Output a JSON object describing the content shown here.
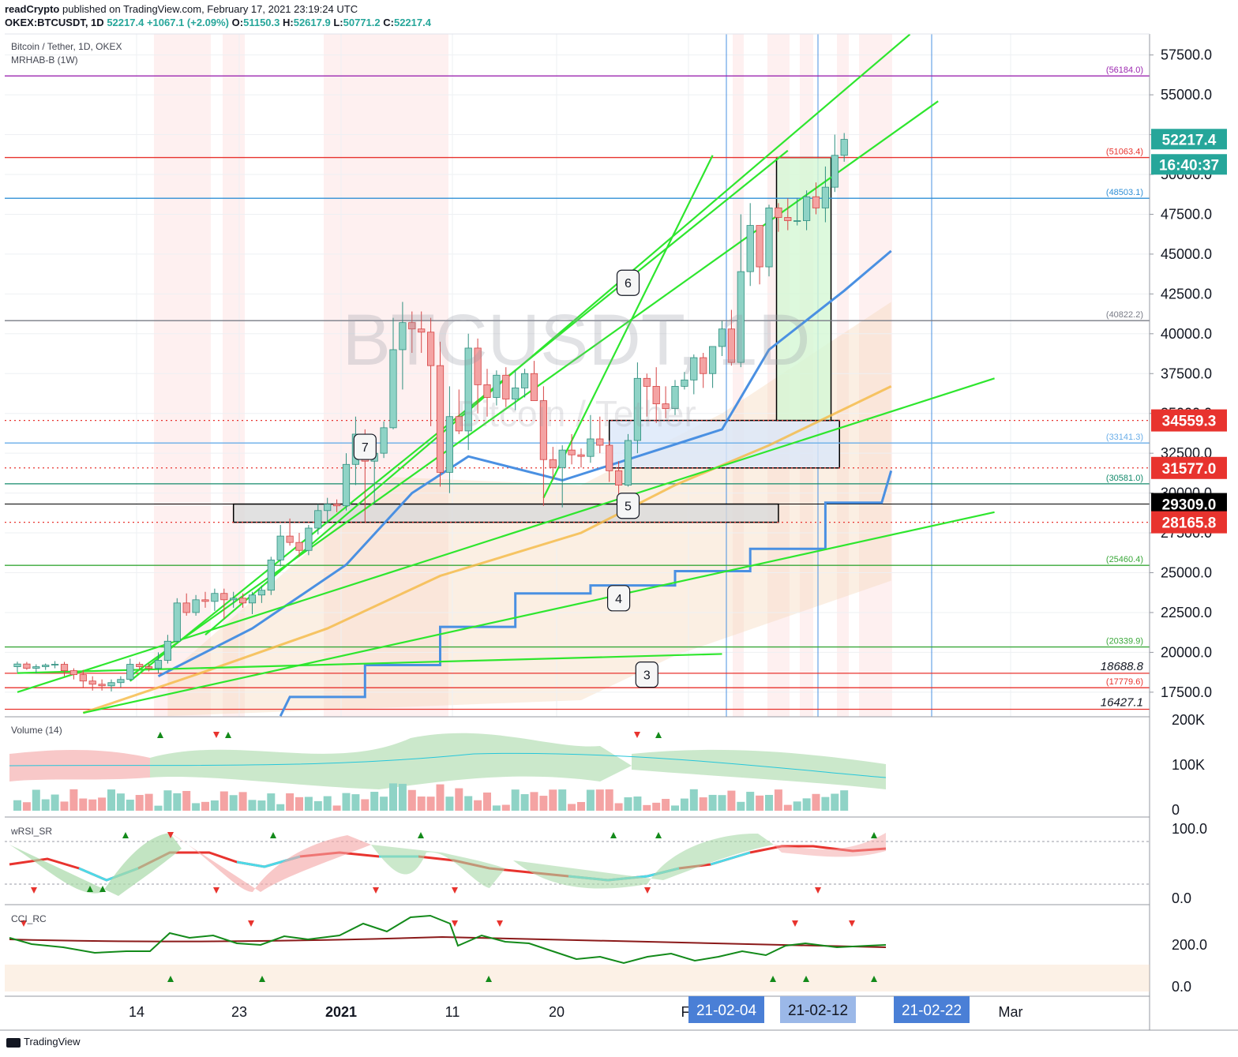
{
  "header": {
    "publisher_brand": "readCrypto",
    "published_text": "published on TradingView.com, February 17, 2021 23:19:24 UTC",
    "symbol_line_prefix": "OKEX:BTCUSDT, 1D",
    "last": "52217.4",
    "change": "+1067.1 (+2.09%)",
    "open_label": "O:",
    "open": "51150.3",
    "high_label": "H:",
    "high": "52617.9",
    "low_label": "L:",
    "low": "50771.2",
    "close_label": "C:",
    "close": "52217.4"
  },
  "legend": {
    "title": "Bitcoin / Tether, 1D, OKEX",
    "indicator": "MRHAB-B (1W)",
    "watermark_symbol": "BTCUSDT, 1D",
    "watermark_name": "Bitcoin / Tether"
  },
  "footer": {
    "brand": "TradingView"
  },
  "colors": {
    "up": "#8fd3c6",
    "up_border": "#2f8f7f",
    "down": "#f4a3a3",
    "down_border": "#d64545",
    "green_line": "#2ee62e",
    "blue_line": "#4a90e2",
    "orange_line": "#f5b942",
    "red_line": "#e8332e",
    "purple_line": "#9c27b0",
    "grid": "#eef0f3"
  },
  "chart_data": {
    "type": "candlestick",
    "symbol": "OKEX:BTCUSDT",
    "interval": "1D",
    "x_tick_labels": [
      "14",
      "23",
      "2021",
      "11",
      "20",
      "F",
      "Mar"
    ],
    "ylim": [
      16000,
      59000
    ],
    "y_tick_labels": [
      "57500.0",
      "55000.0",
      "52500.0",
      "50000.0",
      "47500.0",
      "45000.0",
      "42500.0",
      "40000.0",
      "37500.0",
      "35000.0",
      "32500.0",
      "30000.0",
      "27500.0",
      "25000.0",
      "22500.0",
      "20000.0",
      "17500.0"
    ],
    "current_price": "52217.4",
    "countdown": "16:40:37",
    "price_badges": [
      {
        "text": "34559.3",
        "value": 34559.3,
        "kind": "red"
      },
      {
        "text": "31577.0",
        "value": 31577.0,
        "kind": "red"
      },
      {
        "text": "29309.0",
        "value": 29309.0,
        "kind": "black"
      },
      {
        "text": "28165.8",
        "value": 28165.8,
        "kind": "red"
      }
    ],
    "level_lines": [
      {
        "text": "(56184.0)",
        "value": 56184.0,
        "color": "#9c27b0"
      },
      {
        "text": "(51063.4)",
        "value": 51063.4,
        "color": "#e8332e"
      },
      {
        "text": "(48503.1)",
        "value": 48503.1,
        "color": "#2f8fd6"
      },
      {
        "text": "(40822.2)",
        "value": 40822.2,
        "color": "#787b86"
      },
      {
        "text": "(33141.3)",
        "value": 33141.3,
        "color": "#6aaee8"
      },
      {
        "text": "(30581.0)",
        "value": 30581.0,
        "color": "#138a6b"
      },
      {
        "text": "(25460.4)",
        "value": 25460.4,
        "color": "#3aa83a"
      },
      {
        "text": "(20339.9)",
        "value": 20339.9,
        "color": "#3aa83a"
      },
      {
        "text": "18688.8",
        "value": 18688.8,
        "color": "#e8332e"
      },
      {
        "text": "(17779.6)",
        "value": 17779.6,
        "color": "#e8332e"
      },
      {
        "text": "16427.1",
        "value": 16427.1,
        "color": "#e8332e"
      }
    ],
    "candles": [
      [
        19100,
        19420,
        18750,
        19270
      ],
      [
        19270,
        19400,
        18900,
        19000
      ],
      [
        19000,
        19250,
        18700,
        19100
      ],
      [
        19100,
        19300,
        18900,
        19200
      ],
      [
        19200,
        19450,
        19000,
        19250
      ],
      [
        19250,
        19400,
        18500,
        18850
      ],
      [
        18850,
        19000,
        18300,
        18600
      ],
      [
        18600,
        18900,
        17800,
        18200
      ],
      [
        18200,
        18500,
        17600,
        18000
      ],
      [
        18000,
        18300,
        17600,
        17900
      ],
      [
        17900,
        18300,
        17550,
        18100
      ],
      [
        18100,
        18500,
        17800,
        18300
      ],
      [
        18300,
        19600,
        18200,
        19250
      ],
      [
        19250,
        19400,
        18900,
        19100
      ],
      [
        19100,
        19300,
        18800,
        19000
      ],
      [
        19000,
        20000,
        18700,
        19500
      ],
      [
        19500,
        21100,
        19300,
        20700
      ],
      [
        20700,
        23400,
        20600,
        23100
      ],
      [
        23100,
        23700,
        22300,
        22500
      ],
      [
        22500,
        23600,
        22300,
        23300
      ],
      [
        23300,
        23800,
        22800,
        23200
      ],
      [
        23200,
        24000,
        22600,
        23700
      ],
      [
        23700,
        24000,
        22100,
        23300
      ],
      [
        23300,
        23800,
        22800,
        23400
      ],
      [
        23400,
        23700,
        22800,
        23100
      ],
      [
        23100,
        23800,
        22400,
        23600
      ],
      [
        23600,
        24200,
        23100,
        23900
      ],
      [
        23900,
        26000,
        23600,
        25800
      ],
      [
        25800,
        28000,
        25400,
        27300
      ],
      [
        27300,
        28400,
        26700,
        26900
      ],
      [
        26900,
        27500,
        26000,
        26400
      ],
      [
        26400,
        28000,
        26100,
        27800
      ],
      [
        27800,
        29300,
        27400,
        28900
      ],
      [
        28900,
        29700,
        28100,
        29300
      ],
      [
        29300,
        29600,
        28800,
        29200
      ],
      [
        29200,
        32500,
        28900,
        31800
      ],
      [
        31800,
        34800,
        30500,
        33700
      ],
      [
        33700,
        34000,
        28200,
        32000
      ],
      [
        32000,
        33300,
        29300,
        32500
      ],
      [
        32500,
        34500,
        32200,
        34100
      ],
      [
        34100,
        41000,
        34000,
        39000
      ],
      [
        39000,
        42000,
        36500,
        40700
      ],
      [
        40700,
        41400,
        38800,
        40300
      ],
      [
        40300,
        41400,
        38800,
        40100
      ],
      [
        40100,
        41000,
        34200,
        38000
      ],
      [
        38000,
        39500,
        30400,
        31300
      ],
      [
        31300,
        36700,
        30000,
        34800
      ],
      [
        34800,
        36500,
        33700,
        33900
      ],
      [
        33900,
        40000,
        32700,
        39100
      ],
      [
        39100,
        39700,
        35000,
        36800
      ],
      [
        36800,
        37800,
        34800,
        36000
      ],
      [
        36000,
        37700,
        35500,
        37400
      ],
      [
        37400,
        37900,
        35400,
        35900
      ],
      [
        35900,
        37700,
        35200,
        36600
      ],
      [
        36600,
        37800,
        36000,
        37500
      ],
      [
        37500,
        38300,
        35800,
        35800
      ],
      [
        35800,
        36700,
        29200,
        32100
      ],
      [
        32100,
        32900,
        30800,
        31600
      ],
      [
        31600,
        33000,
        29100,
        32700
      ],
      [
        32700,
        33700,
        31800,
        32400
      ],
      [
        32400,
        32800,
        31600,
        32300
      ],
      [
        32300,
        34900,
        31900,
        33400
      ],
      [
        33400,
        34800,
        32500,
        33000
      ],
      [
        33000,
        33300,
        30700,
        31400
      ],
      [
        31400,
        32000,
        29300,
        30500
      ],
      [
        30500,
        33700,
        30400,
        33300
      ],
      [
        33300,
        38200,
        32500,
        37200
      ],
      [
        37200,
        37500,
        34800,
        36700
      ],
      [
        36700,
        37900,
        34400,
        35600
      ],
      [
        35600,
        36700,
        34700,
        35300
      ],
      [
        35300,
        37100,
        34900,
        36700
      ],
      [
        36700,
        37600,
        36500,
        37100
      ],
      [
        37100,
        38700,
        36200,
        38500
      ],
      [
        38500,
        38800,
        36600,
        37500
      ],
      [
        37500,
        39200,
        36600,
        39200
      ],
      [
        39200,
        40800,
        38600,
        40300
      ],
      [
        40300,
        41500,
        38000,
        38200
      ],
      [
        38200,
        47500,
        37900,
        43900
      ],
      [
        43900,
        48200,
        43000,
        46800
      ],
      [
        46800,
        46800,
        43100,
        44200
      ],
      [
        44200,
        48100,
        43600,
        47900
      ],
      [
        47900,
        48200,
        46400,
        47300
      ],
      [
        47300,
        48500,
        46500,
        47100
      ],
      [
        47100,
        48500,
        46800,
        47100
      ],
      [
        47100,
        49000,
        46500,
        48600
      ],
      [
        48600,
        49500,
        47500,
        47900
      ],
      [
        47900,
        50500,
        47000,
        49200
      ],
      [
        49200,
        52500,
        48900,
        51200
      ],
      [
        51200,
        52600,
        50800,
        52200
      ]
    ],
    "trend_lines": [
      {
        "from": [
          0,
          18700
        ],
        "to": [
          75,
          19900
        ]
      },
      {
        "from": [
          0,
          17500
        ],
        "to": [
          104,
          37200
        ]
      },
      {
        "from": [
          7,
          16200
        ],
        "to": [
          104,
          28800
        ]
      },
      {
        "from": [
          12,
          18200
        ],
        "to": [
          82,
          51500
        ]
      },
      {
        "from": [
          12,
          18500
        ],
        "to": [
          98,
          54600
        ]
      },
      {
        "from": [
          20,
          21100
        ],
        "to": [
          95,
          58800
        ]
      },
      {
        "from": [
          56,
          29700
        ],
        "to": [
          74,
          51200
        ]
      }
    ],
    "zones": [
      {
        "name": "grey-box",
        "x_from": 23,
        "x_to": 81,
        "y_from": 28165.8,
        "y_to": 29309.0
      },
      {
        "name": "blue-box",
        "x_from": 63,
        "x_to": 87.5,
        "y_from": 31577.0,
        "y_to": 34559.3
      },
      {
        "name": "target-box",
        "x_from": 80.8,
        "x_to": 86.6,
        "y_from": 34559.3,
        "y_to": 51063.4
      }
    ],
    "wave_labels": [
      {
        "text": "7",
        "x": 37,
        "y": 32900
      },
      {
        "text": "6",
        "x": 65,
        "y": 43200
      },
      {
        "text": "5",
        "x": 65,
        "y": 29200
      },
      {
        "text": "4",
        "x": 64,
        "y": 23400
      },
      {
        "text": "3",
        "x": 67,
        "y": 18600
      }
    ],
    "date_tags": [
      "21-02-04",
      "21-02-12",
      "21-02-22"
    ],
    "volume": {
      "title": "Volume (14)",
      "y_tick_labels": [
        "200K",
        "100K",
        "0"
      ]
    },
    "wrsi": {
      "title": "wRSI_SR",
      "y_tick_labels": [
        "100.0",
        "0.0"
      ]
    },
    "cci": {
      "title": "CCI_RC",
      "y_tick_labels": [
        "200.0",
        "0.0"
      ]
    }
  }
}
